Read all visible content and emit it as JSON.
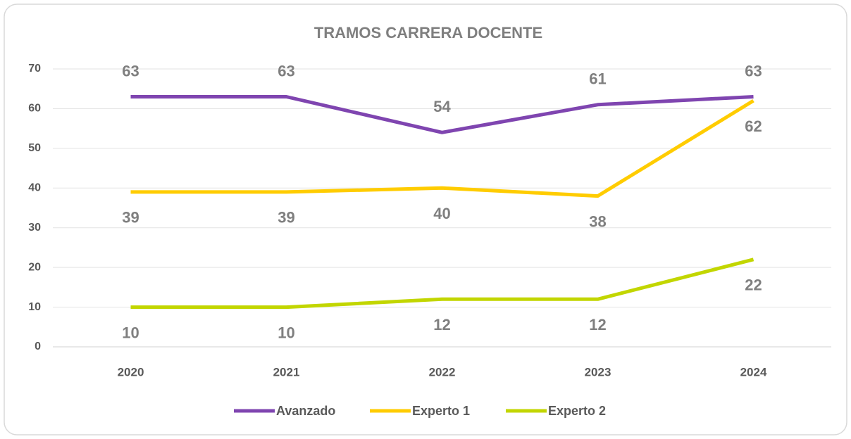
{
  "chart_data": {
    "type": "line",
    "title": "TRAMOS CARRERA DOCENTE",
    "categories": [
      "2020",
      "2021",
      "2022",
      "2023",
      "2024"
    ],
    "series": [
      {
        "name": "Avanzado",
        "color": "#7f45b0",
        "values": [
          63,
          63,
          54,
          61,
          63
        ],
        "label_position": "above"
      },
      {
        "name": "Experto 1",
        "color": "#ffcc00",
        "values": [
          39,
          39,
          40,
          38,
          62
        ],
        "label_position": "below"
      },
      {
        "name": "Experto 2",
        "color": "#c2d600",
        "values": [
          10,
          10,
          12,
          12,
          22
        ],
        "label_position": "below"
      }
    ],
    "ylim": [
      0,
      70
    ],
    "yticks": [
      0,
      10,
      20,
      30,
      40,
      50,
      60,
      70
    ],
    "grid": true,
    "legend": "bottom"
  }
}
